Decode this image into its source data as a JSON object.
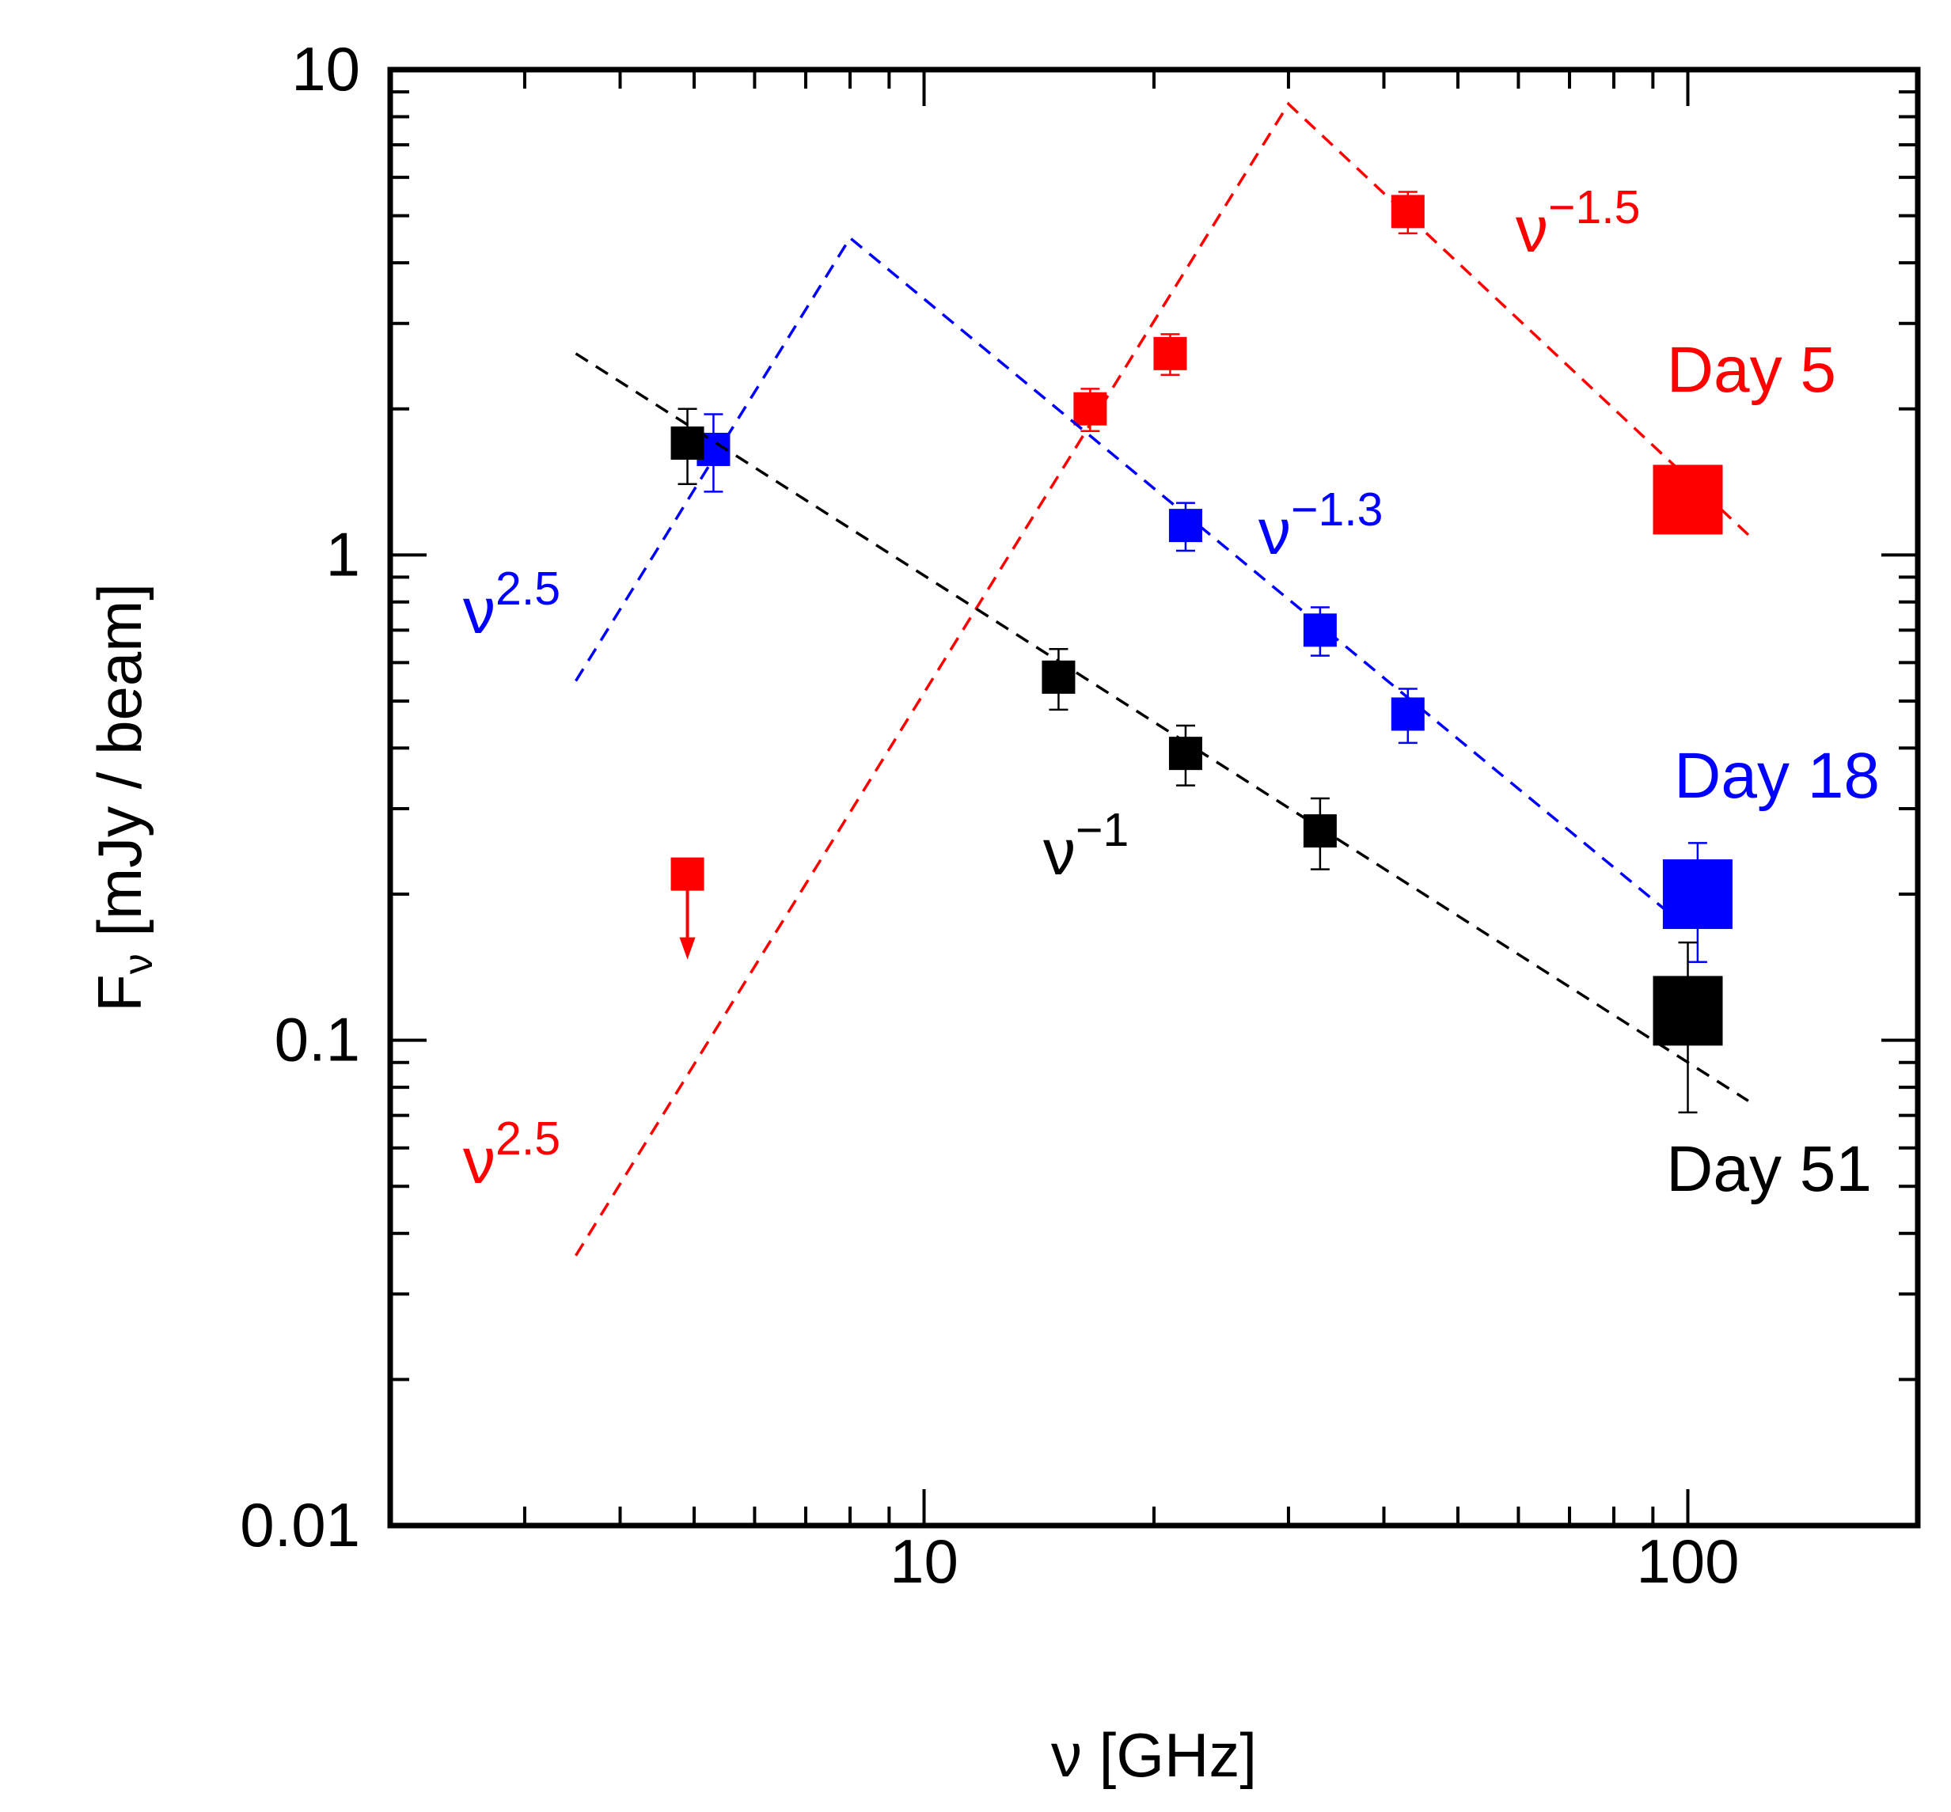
{
  "chart_data": {
    "type": "scatter",
    "title": "",
    "xlabel": "ν [GHz]",
    "ylabel_main": "F",
    "ylabel_sub": "ν",
    "ylabel_rest": " [mJy / beam]",
    "xscale": "log",
    "yscale": "log",
    "xlim": [
      2,
      200
    ],
    "ylim": [
      0.01,
      10
    ],
    "x_ticks": [
      {
        "value": 10,
        "label": "10"
      },
      {
        "value": 100,
        "label": "100"
      }
    ],
    "y_ticks": [
      {
        "value": 0.01,
        "label": "0.01"
      },
      {
        "value": 0.1,
        "label": "0.1"
      },
      {
        "value": 1,
        "label": "1"
      },
      {
        "value": 10,
        "label": "10"
      }
    ],
    "grid": false,
    "series": [
      {
        "name": "Day 5",
        "color": "#ff0000",
        "points": [
          {
            "x": 16.5,
            "y": 2.0,
            "err": 0.2
          },
          {
            "x": 21,
            "y": 2.6,
            "err": 0.25
          },
          {
            "x": 43,
            "y": 5.1,
            "err": 0.5
          },
          {
            "x": 100,
            "y": 1.3,
            "err": 0,
            "big": true
          }
        ],
        "upper_limits": [
          {
            "x": 4.9,
            "y": 0.22,
            "to": 0.15
          }
        ],
        "model": {
          "x": [
            3.5,
            30,
            120
          ],
          "y": [
            0.036,
            8.5,
            1.1
          ]
        }
      },
      {
        "name": "Day 18",
        "color": "#0000ff",
        "points": [
          {
            "x": 5.3,
            "y": 1.65,
            "err": 0.3
          },
          {
            "x": 22,
            "y": 1.15,
            "err": 0.13
          },
          {
            "x": 33,
            "y": 0.7,
            "err": 0.08
          },
          {
            "x": 43,
            "y": 0.47,
            "err": 0.06
          },
          {
            "x": 103,
            "y": 0.2,
            "err": 0.055,
            "big": true
          }
        ],
        "upper_limits": [],
        "model": {
          "x": [
            3.5,
            8,
            100
          ],
          "y": [
            0.55,
            4.5,
            0.17
          ]
        }
      },
      {
        "name": "Day 51",
        "color": "#000000",
        "points": [
          {
            "x": 4.9,
            "y": 1.7,
            "err": 0.3
          },
          {
            "x": 15,
            "y": 0.56,
            "err": 0.08
          },
          {
            "x": 22,
            "y": 0.39,
            "err": 0.055
          },
          {
            "x": 33,
            "y": 0.27,
            "err": 0.045
          },
          {
            "x": 100,
            "y": 0.115,
            "err": 0.044,
            "big": true
          }
        ],
        "upper_limits": [],
        "model": {
          "x": [
            3.5,
            120
          ],
          "y": [
            2.6,
            0.075
          ]
        }
      }
    ],
    "annotations": [
      {
        "id": "day5",
        "base": "Day 5",
        "color": "#ff0000"
      },
      {
        "id": "day18",
        "base": "Day 18",
        "color": "#0000ff"
      },
      {
        "id": "day51",
        "base": "Day 51",
        "color": "#000000"
      },
      {
        "id": "red_slope_high",
        "base": "ν",
        "sup": "−1.5",
        "color": "#ff0000"
      },
      {
        "id": "blue_slope_high",
        "base": "ν",
        "sup": "−1.3",
        "color": "#0000ff"
      },
      {
        "id": "black_slope",
        "base": "ν",
        "sup": "−1",
        "color": "#000000"
      },
      {
        "id": "blue_slope_low",
        "base": "ν",
        "sup": "2.5",
        "color": "#0000ff"
      },
      {
        "id": "red_slope_low",
        "base": "ν",
        "sup": "2.5",
        "color": "#ff0000"
      }
    ]
  }
}
